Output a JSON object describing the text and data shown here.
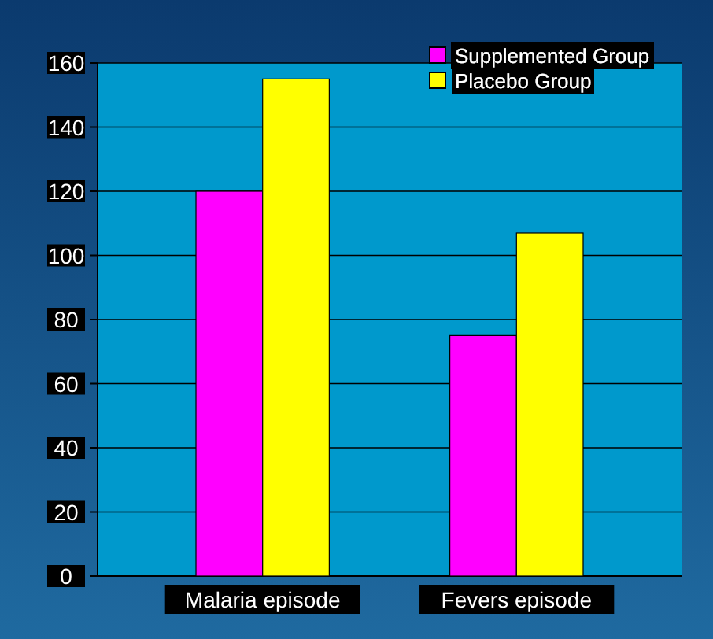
{
  "chart_data": {
    "type": "bar",
    "categories": [
      "Malaria episode",
      "Fevers episode"
    ],
    "series": [
      {
        "name": "Supplemented Group",
        "color": "#ff00ff",
        "values": [
          120,
          75
        ]
      },
      {
        "name": "Placebo Group",
        "color": "#ffff00",
        "values": [
          155,
          107
        ]
      }
    ],
    "ylim": [
      0,
      160
    ],
    "yticks": [
      0,
      20,
      40,
      60,
      80,
      100,
      120,
      140,
      160
    ],
    "grid": "y",
    "legend": "top right"
  }
}
